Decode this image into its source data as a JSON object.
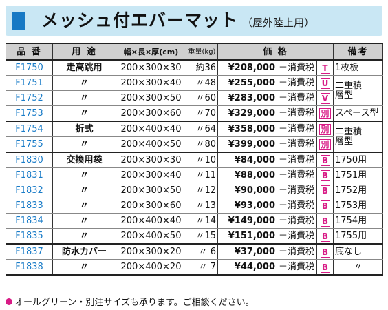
{
  "header": {
    "title": "メッシュ付エバーマット",
    "subtitle": "（屋外陸上用）"
  },
  "columns": {
    "code": "品 番",
    "use": "用 途",
    "size": "幅×長×厚(cm)",
    "weight": "重量(kg)",
    "price": "価 格",
    "note": "備考"
  },
  "rows": [
    {
      "code": "F1750",
      "use": "走高跳用",
      "size": "200×300×30",
      "weight": "約36",
      "price": "¥208,000",
      "tax": "＋消費税",
      "class": "T",
      "note": "1枚板"
    },
    {
      "code": "F1751",
      "use": "〃",
      "size": "200×300×40",
      "weight": "〃48",
      "price": "¥255,000",
      "tax": "＋消費税",
      "class": "U",
      "note": "二重積層型"
    },
    {
      "code": "F1752",
      "use": "〃",
      "size": "200×300×50",
      "weight": "〃60",
      "price": "¥283,000",
      "tax": "＋消費税",
      "class": "V",
      "note": ""
    },
    {
      "code": "F1753",
      "use": "〃",
      "size": "200×300×60",
      "weight": "〃70",
      "price": "¥329,000",
      "tax": "＋消費税",
      "class": "別",
      "note": "スペース型"
    },
    {
      "code": "F1754",
      "use": "折式",
      "size": "200×400×40",
      "weight": "〃64",
      "price": "¥358,000",
      "tax": "＋消費税",
      "class": "別",
      "note": "二重積層型"
    },
    {
      "code": "F1755",
      "use": "〃",
      "size": "200×400×50",
      "weight": "〃80",
      "price": "¥399,000",
      "tax": "＋消費税",
      "class": "別",
      "note": ""
    },
    {
      "code": "F1830",
      "use": "交換用袋",
      "size": "200×300×30",
      "weight": "〃10",
      "price": "¥84,000",
      "tax": "＋消費税",
      "class": "B",
      "note": "1750用"
    },
    {
      "code": "F1831",
      "use": "〃",
      "size": "200×300×40",
      "weight": "〃11",
      "price": "¥88,000",
      "tax": "＋消費税",
      "class": "B",
      "note": "1751用"
    },
    {
      "code": "F1832",
      "use": "〃",
      "size": "200×300×50",
      "weight": "〃12",
      "price": "¥90,000",
      "tax": "＋消費税",
      "class": "B",
      "note": "1752用"
    },
    {
      "code": "F1833",
      "use": "〃",
      "size": "200×300×60",
      "weight": "〃13",
      "price": "¥93,000",
      "tax": "＋消費税",
      "class": "B",
      "note": "1753用"
    },
    {
      "code": "F1834",
      "use": "〃",
      "size": "200×400×40",
      "weight": "〃14",
      "price": "¥149,000",
      "tax": "＋消費税",
      "class": "B",
      "note": "1754用"
    },
    {
      "code": "F1835",
      "use": "〃",
      "size": "200×400×50",
      "weight": "〃15",
      "price": "¥151,000",
      "tax": "＋消費税",
      "class": "B",
      "note": "1755用"
    },
    {
      "code": "F1837",
      "use": "防水カバー",
      "size": "200×300×20",
      "weight": "〃 6",
      "price": "¥37,000",
      "tax": "＋消費税",
      "class": "B",
      "note": "底なし"
    },
    {
      "code": "F1838",
      "use": "〃",
      "size": "200×400×20",
      "weight": "〃 7",
      "price": "¥44,000",
      "tax": "＋消費税",
      "class": "B",
      "note": "〃"
    }
  ],
  "footnote": "オールグリーン・別注サイズも承ります。ご相談ください。",
  "colors": {
    "code_blue": "#1a7cc8",
    "badge_magenta": "#d81b86",
    "title_bg": "#c9e7f4",
    "accent_blue": "#1779c4"
  }
}
